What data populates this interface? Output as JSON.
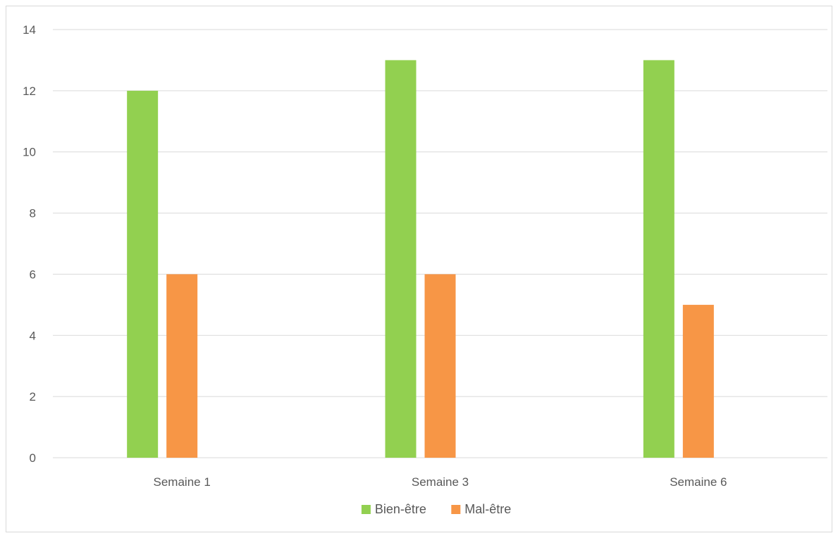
{
  "chart_data": {
    "type": "bar",
    "title": "",
    "xlabel": "",
    "ylabel": "",
    "categories": [
      "Semaine 1",
      "Semaine 3",
      "Semaine 6"
    ],
    "series": [
      {
        "name": "Bien-être",
        "values": [
          12,
          13,
          13
        ],
        "color": "#92d050"
      },
      {
        "name": "Mal-être",
        "values": [
          6,
          6,
          5
        ],
        "color": "#f79646"
      },
      {
        "values": [
          0,
          0,
          0
        ],
        "color": "#a5a5a5"
      }
    ],
    "ylim": [
      0,
      14
    ],
    "yticks": [
      0,
      2,
      4,
      6,
      8,
      10,
      12,
      14
    ],
    "grid": true,
    "legend_position": "bottom",
    "legend": [
      "Bien-être",
      "Mal-être"
    ]
  }
}
